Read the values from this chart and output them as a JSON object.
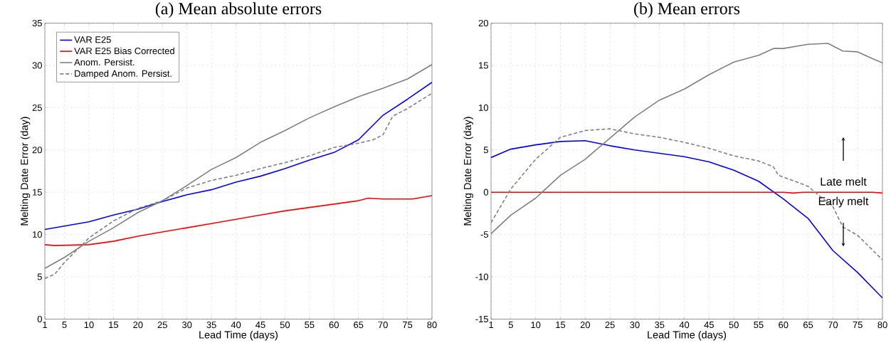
{
  "chart_data": [
    {
      "type": "line",
      "title": "(a) Mean absolute errors",
      "xlabel": "Lead Time (days)",
      "ylabel": "Melting Date Error (day)",
      "xlim": [
        1,
        80
      ],
      "ylim": [
        0,
        35
      ],
      "xticks": [
        1,
        5,
        10,
        15,
        20,
        25,
        30,
        35,
        40,
        45,
        50,
        55,
        60,
        65,
        70,
        75,
        80
      ],
      "yticks": [
        0,
        5,
        10,
        15,
        20,
        25,
        30,
        35
      ],
      "grid": true,
      "legend": "top left",
      "series": [
        {
          "name": "VAR E25",
          "color": "#0000ff",
          "line_style": "solid",
          "x": [
            1,
            5,
            10,
            15,
            20,
            25,
            30,
            35,
            40,
            45,
            50,
            55,
            60,
            65,
            70,
            75,
            80
          ],
          "values": [
            10.6,
            11.0,
            11.5,
            12.3,
            13.0,
            13.9,
            14.7,
            15.3,
            16.2,
            16.9,
            17.8,
            18.8,
            19.7,
            21.2,
            24.1,
            26.0,
            28.0
          ]
        },
        {
          "name": "VAR E25 Bias Corrected",
          "color": "#ff0000",
          "line_style": "solid",
          "x": [
            1,
            3,
            10,
            15,
            20,
            25,
            30,
            35,
            40,
            45,
            50,
            55,
            60,
            65,
            67,
            70,
            76,
            80
          ],
          "values": [
            8.8,
            8.7,
            8.8,
            9.2,
            9.8,
            10.3,
            10.8,
            11.3,
            11.8,
            12.3,
            12.8,
            13.2,
            13.6,
            14.0,
            14.3,
            14.2,
            14.2,
            14.6
          ]
        },
        {
          "name": "Anom. Persist.",
          "color": "#808080",
          "line_style": "solid",
          "x": [
            1,
            5,
            10,
            15,
            20,
            25,
            30,
            35,
            40,
            45,
            50,
            55,
            60,
            65,
            70,
            75,
            80
          ],
          "values": [
            6.0,
            7.3,
            9.2,
            10.8,
            12.6,
            14.0,
            15.8,
            17.7,
            19.1,
            20.9,
            22.3,
            23.8,
            25.1,
            26.3,
            27.3,
            28.4,
            30.1
          ]
        },
        {
          "name": "Damped Anom. Persist.",
          "color": "#808080",
          "line_style": "dashed",
          "x": [
            1,
            3,
            5,
            10,
            15,
            20,
            25,
            30,
            35,
            40,
            45,
            50,
            55,
            60,
            65,
            68,
            70,
            72,
            75,
            80
          ],
          "values": [
            4.8,
            5.3,
            6.7,
            9.6,
            11.6,
            13.1,
            14.0,
            15.5,
            16.4,
            17.0,
            17.8,
            18.5,
            19.3,
            20.3,
            20.8,
            21.2,
            21.8,
            24.0,
            24.9,
            26.7
          ]
        }
      ]
    },
    {
      "type": "line",
      "title": "(b) Mean errors",
      "xlabel": "Lead Time (days)",
      "ylabel": "Melting Date Error (day)",
      "xlim": [
        1,
        80
      ],
      "ylim": [
        -15,
        20
      ],
      "xticks": [
        1,
        5,
        10,
        15,
        20,
        25,
        30,
        35,
        40,
        45,
        50,
        55,
        60,
        65,
        70,
        75,
        80
      ],
      "yticks": [
        -15,
        -10,
        -5,
        0,
        5,
        10,
        15,
        20
      ],
      "grid": true,
      "annotations": [
        "Late melt",
        "Early melt"
      ],
      "series": [
        {
          "color": "#0000ff",
          "line_style": "solid",
          "x": [
            1,
            5,
            10,
            15,
            20,
            25,
            30,
            35,
            40,
            45,
            50,
            55,
            60,
            65,
            70,
            75,
            80
          ],
          "values": [
            4.1,
            5.1,
            5.6,
            6.0,
            6.1,
            5.5,
            5.0,
            4.6,
            4.2,
            3.6,
            2.6,
            1.3,
            -0.8,
            -3.1,
            -6.9,
            -9.5,
            -12.5
          ]
        },
        {
          "color": "#ff0000",
          "line_style": "solid",
          "x": [
            1,
            60,
            62,
            64,
            78,
            80
          ],
          "values": [
            0,
            0,
            -0.1,
            0,
            0,
            -0.1
          ]
        },
        {
          "color": "#808080",
          "line_style": "solid",
          "x": [
            1,
            5,
            10,
            15,
            20,
            25,
            30,
            35,
            40,
            45,
            50,
            55,
            58,
            60,
            65,
            69,
            72,
            75,
            78,
            80
          ],
          "values": [
            -4.9,
            -2.7,
            -0.7,
            2.0,
            3.9,
            6.4,
            8.9,
            10.9,
            12.2,
            13.9,
            15.4,
            16.2,
            17.0,
            17.0,
            17.5,
            17.6,
            16.7,
            16.6,
            15.8,
            15.3
          ]
        },
        {
          "color": "#808080",
          "line_style": "dashed",
          "x": [
            1,
            5,
            10,
            15,
            20,
            25,
            30,
            35,
            40,
            45,
            50,
            55,
            58,
            59,
            60,
            65,
            67,
            70,
            72,
            75,
            80
          ],
          "values": [
            -3.6,
            0.4,
            3.9,
            6.5,
            7.3,
            7.5,
            6.9,
            6.5,
            5.9,
            5.2,
            4.3,
            3.7,
            3.0,
            2.0,
            1.8,
            0.7,
            -0.3,
            -1.7,
            -4.1,
            -5.1,
            -8.0
          ]
        }
      ]
    }
  ]
}
